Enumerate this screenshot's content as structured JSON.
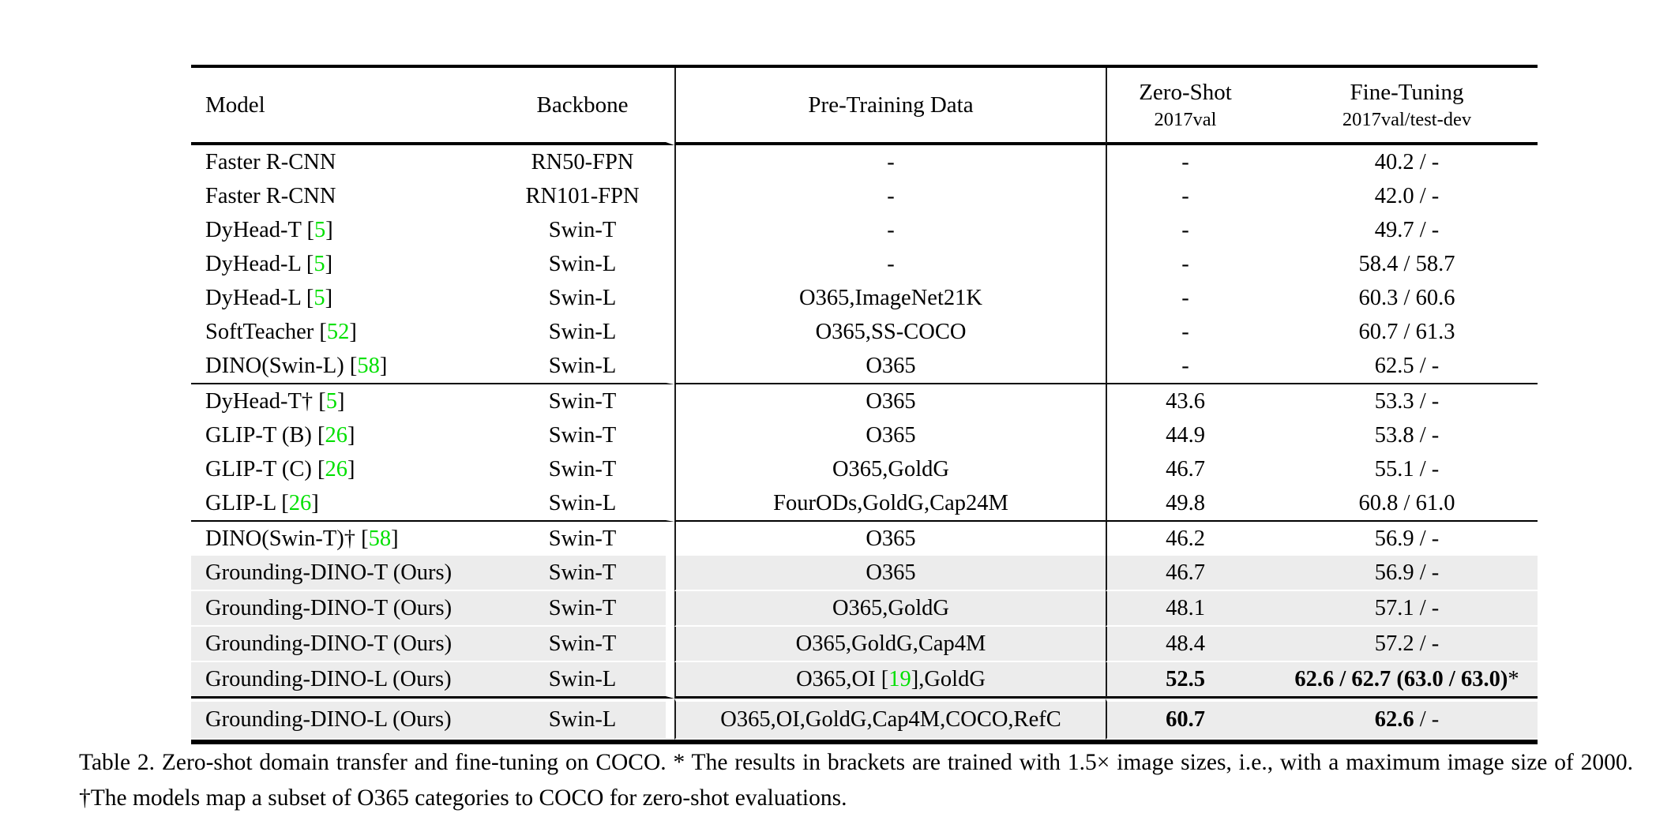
{
  "colors": {
    "citation_green": "#00e000",
    "row_highlight": "#ececec",
    "rule_black": "#000000"
  },
  "table": {
    "columns": [
      {
        "label": "Model",
        "sub": ""
      },
      {
        "label": "Backbone",
        "sub": ""
      },
      {
        "label": "Pre-Training Data",
        "sub": ""
      },
      {
        "label": "Zero-Shot",
        "sub": "2017val"
      },
      {
        "label": "Fine-Tuning",
        "sub": "2017val/test-dev"
      }
    ],
    "groups": [
      {
        "rows": [
          {
            "highlight": false,
            "cells": [
              [
                {
                  "text": "Faster R-CNN"
                }
              ],
              [
                {
                  "text": "RN50-FPN"
                }
              ],
              [
                {
                  "text": "-"
                }
              ],
              [
                {
                  "text": "-"
                }
              ],
              [
                {
                  "text": "40.2 / -"
                }
              ]
            ]
          },
          {
            "highlight": false,
            "cells": [
              [
                {
                  "text": "Faster R-CNN"
                }
              ],
              [
                {
                  "text": "RN101-FPN"
                }
              ],
              [
                {
                  "text": "-"
                }
              ],
              [
                {
                  "text": "-"
                }
              ],
              [
                {
                  "text": "42.0 / -"
                }
              ]
            ]
          },
          {
            "highlight": false,
            "cells": [
              [
                {
                  "text": "DyHead-T ["
                },
                {
                  "text": "5",
                  "green": true
                },
                {
                  "text": "]"
                }
              ],
              [
                {
                  "text": "Swin-T"
                }
              ],
              [
                {
                  "text": "-"
                }
              ],
              [
                {
                  "text": "-"
                }
              ],
              [
                {
                  "text": "49.7 / -"
                }
              ]
            ]
          },
          {
            "highlight": false,
            "cells": [
              [
                {
                  "text": "DyHead-L ["
                },
                {
                  "text": "5",
                  "green": true
                },
                {
                  "text": "]"
                }
              ],
              [
                {
                  "text": "Swin-L"
                }
              ],
              [
                {
                  "text": "-"
                }
              ],
              [
                {
                  "text": "-"
                }
              ],
              [
                {
                  "text": "58.4 / 58.7"
                }
              ]
            ]
          },
          {
            "highlight": false,
            "cells": [
              [
                {
                  "text": "DyHead-L ["
                },
                {
                  "text": "5",
                  "green": true
                },
                {
                  "text": "]"
                }
              ],
              [
                {
                  "text": "Swin-L"
                }
              ],
              [
                {
                  "text": "O365,ImageNet21K"
                }
              ],
              [
                {
                  "text": "-"
                }
              ],
              [
                {
                  "text": "60.3 / 60.6"
                }
              ]
            ]
          },
          {
            "highlight": false,
            "cells": [
              [
                {
                  "text": "SoftTeacher ["
                },
                {
                  "text": "52",
                  "green": true
                },
                {
                  "text": "]"
                }
              ],
              [
                {
                  "text": "Swin-L"
                }
              ],
              [
                {
                  "text": "O365,SS-COCO"
                }
              ],
              [
                {
                  "text": "-"
                }
              ],
              [
                {
                  "text": "60.7 / 61.3"
                }
              ]
            ]
          },
          {
            "highlight": false,
            "cells": [
              [
                {
                  "text": "DINO(Swin-L) ["
                },
                {
                  "text": "58",
                  "green": true
                },
                {
                  "text": "]"
                }
              ],
              [
                {
                  "text": "Swin-L"
                }
              ],
              [
                {
                  "text": "O365"
                }
              ],
              [
                {
                  "text": "-"
                }
              ],
              [
                {
                  "text": "62.5 / -"
                }
              ]
            ]
          }
        ]
      },
      {
        "rows": [
          {
            "highlight": false,
            "cells": [
              [
                {
                  "text": "DyHead-T† ["
                },
                {
                  "text": "5",
                  "green": true
                },
                {
                  "text": "]"
                }
              ],
              [
                {
                  "text": "Swin-T"
                }
              ],
              [
                {
                  "text": "O365"
                }
              ],
              [
                {
                  "text": "43.6"
                }
              ],
              [
                {
                  "text": "53.3 / -"
                }
              ]
            ]
          },
          {
            "highlight": false,
            "cells": [
              [
                {
                  "text": "GLIP-T (B) ["
                },
                {
                  "text": "26",
                  "green": true
                },
                {
                  "text": "]"
                }
              ],
              [
                {
                  "text": "Swin-T"
                }
              ],
              [
                {
                  "text": "O365"
                }
              ],
              [
                {
                  "text": "44.9"
                }
              ],
              [
                {
                  "text": "53.8 / -"
                }
              ]
            ]
          },
          {
            "highlight": false,
            "cells": [
              [
                {
                  "text": "GLIP-T (C) ["
                },
                {
                  "text": "26",
                  "green": true
                },
                {
                  "text": "]"
                }
              ],
              [
                {
                  "text": "Swin-T"
                }
              ],
              [
                {
                  "text": "O365,GoldG"
                }
              ],
              [
                {
                  "text": "46.7"
                }
              ],
              [
                {
                  "text": "55.1 / -"
                }
              ]
            ]
          },
          {
            "highlight": false,
            "cells": [
              [
                {
                  "text": "GLIP-L ["
                },
                {
                  "text": "26",
                  "green": true
                },
                {
                  "text": "]"
                }
              ],
              [
                {
                  "text": "Swin-L"
                }
              ],
              [
                {
                  "text": "FourODs,GoldG,Cap24M"
                }
              ],
              [
                {
                  "text": "49.8"
                }
              ],
              [
                {
                  "text": "60.8 / 61.0"
                }
              ]
            ]
          }
        ]
      },
      {
        "rows": [
          {
            "highlight": false,
            "cells": [
              [
                {
                  "text": "DINO(Swin-T)† ["
                },
                {
                  "text": "58",
                  "green": true
                },
                {
                  "text": "]"
                }
              ],
              [
                {
                  "text": "Swin-T"
                }
              ],
              [
                {
                  "text": "O365"
                }
              ],
              [
                {
                  "text": "46.2"
                }
              ],
              [
                {
                  "text": "56.9 / -"
                }
              ]
            ]
          },
          {
            "highlight": true,
            "cells": [
              [
                {
                  "text": "Grounding-DINO-T (Ours)"
                }
              ],
              [
                {
                  "text": "Swin-T"
                }
              ],
              [
                {
                  "text": "O365"
                }
              ],
              [
                {
                  "text": "46.7"
                }
              ],
              [
                {
                  "text": "56.9 / -"
                }
              ]
            ]
          },
          {
            "highlight": true,
            "cells": [
              [
                {
                  "text": "Grounding-DINO-T (Ours)"
                }
              ],
              [
                {
                  "text": "Swin-T"
                }
              ],
              [
                {
                  "text": "O365,GoldG"
                }
              ],
              [
                {
                  "text": "48.1"
                }
              ],
              [
                {
                  "text": "57.1 / -"
                }
              ]
            ]
          },
          {
            "highlight": true,
            "cells": [
              [
                {
                  "text": "Grounding-DINO-T (Ours)"
                }
              ],
              [
                {
                  "text": "Swin-T"
                }
              ],
              [
                {
                  "text": "O365,GoldG,Cap4M"
                }
              ],
              [
                {
                  "text": "48.4"
                }
              ],
              [
                {
                  "text": "57.2 / -"
                }
              ]
            ]
          },
          {
            "highlight": true,
            "cells": [
              [
                {
                  "text": "Grounding-DINO-L (Ours)"
                }
              ],
              [
                {
                  "text": "Swin-L"
                }
              ],
              [
                {
                  "text": "O365,OI ["
                },
                {
                  "text": "19",
                  "green": true
                },
                {
                  "text": "],GoldG"
                }
              ],
              [
                {
                  "text": "52.5",
                  "bold": true
                }
              ],
              [
                {
                  "text": "62.6 / 62.7 (63.0 / 63.0)",
                  "bold": true
                },
                {
                  "text": "*"
                }
              ]
            ]
          }
        ]
      },
      {
        "rows": [
          {
            "highlight": true,
            "cells": [
              [
                {
                  "text": "Grounding-DINO-L (Ours)"
                }
              ],
              [
                {
                  "text": "Swin-L"
                }
              ],
              [
                {
                  "text": "O365,OI,GoldG,Cap4M,COCO,RefC"
                }
              ],
              [
                {
                  "text": "60.7",
                  "bold": true
                }
              ],
              [
                {
                  "text": "62.6",
                  "bold": true
                },
                {
                  "text": " / -"
                }
              ]
            ]
          }
        ]
      }
    ]
  },
  "caption": "Table 2. Zero-shot domain transfer and fine-tuning on COCO. * The results in brackets are trained with 1.5× image sizes, i.e., with a maximum image size of 2000. †The models map a subset of O365 categories to COCO for zero-shot evaluations."
}
